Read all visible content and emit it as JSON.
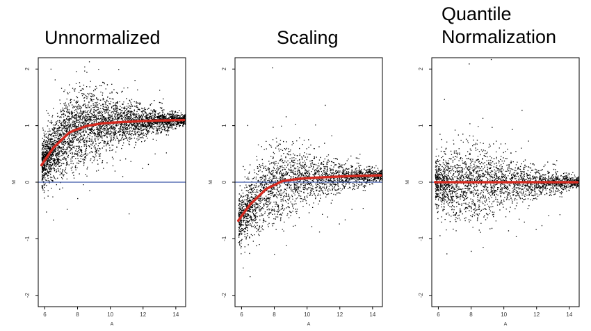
{
  "colors": {
    "points": "#000000",
    "loess": "#d42a20",
    "zero_line": "#3a56a6",
    "frame": "#000000",
    "background": "#ffffff"
  },
  "chart_data": [
    {
      "type": "scatter",
      "title": "Unnormalized",
      "xlabel": "A",
      "ylabel": "M",
      "xlim": [
        5.6,
        14.6
      ],
      "ylim": [
        -2.2,
        2.2
      ],
      "xticks": [
        6,
        8,
        10,
        12,
        14
      ],
      "yticks": [
        -2,
        -1,
        0,
        1,
        2
      ],
      "hline_y": 0,
      "point_cloud": {
        "description_points": "dense MA cloud",
        "center_curve": [
          [
            5.8,
            0.3
          ],
          [
            6.5,
            0.6
          ],
          [
            7.5,
            0.88
          ],
          [
            8.5,
            0.99
          ],
          [
            9.5,
            1.04
          ],
          [
            10.5,
            1.06
          ],
          [
            12,
            1.08
          ],
          [
            13,
            1.09
          ],
          [
            14.5,
            1.1
          ]
        ],
        "spread_by_A": [
          [
            5.8,
            0.35
          ],
          [
            7,
            0.55
          ],
          [
            8,
            0.6
          ],
          [
            9,
            0.55
          ],
          [
            10,
            0.42
          ],
          [
            11,
            0.32
          ],
          [
            12,
            0.24
          ],
          [
            13,
            0.17
          ],
          [
            14.5,
            0.08
          ]
        ]
      },
      "loess_curve": [
        [
          5.8,
          0.3
        ],
        [
          6.5,
          0.6
        ],
        [
          7.5,
          0.88
        ],
        [
          8.5,
          0.99
        ],
        [
          9.5,
          1.04
        ],
        [
          10.5,
          1.06
        ],
        [
          12,
          1.08
        ],
        [
          13,
          1.09
        ],
        [
          14.5,
          1.1
        ]
      ]
    },
    {
      "type": "scatter",
      "title": "Scaling",
      "xlabel": "A",
      "ylabel": "M",
      "xlim": [
        5.6,
        14.6
      ],
      "ylim": [
        -2.2,
        2.2
      ],
      "xticks": [
        6,
        8,
        10,
        12,
        14
      ],
      "yticks": [
        -2,
        -1,
        0,
        1,
        2
      ],
      "hline_y": 0,
      "point_cloud": {
        "center_curve": [
          [
            5.8,
            -0.68
          ],
          [
            6.5,
            -0.4
          ],
          [
            7.5,
            -0.12
          ],
          [
            8.5,
            0.02
          ],
          [
            9.5,
            0.06
          ],
          [
            10.5,
            0.08
          ],
          [
            12,
            0.1
          ],
          [
            13,
            0.11
          ],
          [
            14.5,
            0.12
          ]
        ],
        "spread_by_A": [
          [
            5.8,
            0.35
          ],
          [
            7,
            0.55
          ],
          [
            8,
            0.6
          ],
          [
            9,
            0.55
          ],
          [
            10,
            0.42
          ],
          [
            11,
            0.32
          ],
          [
            12,
            0.24
          ],
          [
            13,
            0.17
          ],
          [
            14.5,
            0.08
          ]
        ]
      },
      "loess_curve": [
        [
          5.8,
          -0.68
        ],
        [
          6.5,
          -0.4
        ],
        [
          7.5,
          -0.12
        ],
        [
          8.5,
          0.02
        ],
        [
          9.5,
          0.06
        ],
        [
          10.5,
          0.08
        ],
        [
          12,
          0.1
        ],
        [
          13,
          0.11
        ],
        [
          14.5,
          0.12
        ]
      ]
    },
    {
      "type": "scatter",
      "title": "Quantile\nNormalization",
      "xlabel": "A",
      "ylabel": "M",
      "xlim": [
        5.6,
        14.6
      ],
      "ylim": [
        -2.2,
        2.2
      ],
      "xticks": [
        6,
        8,
        10,
        12,
        14
      ],
      "yticks": [
        -2,
        -1,
        0,
        1,
        2
      ],
      "hline_y": 0,
      "point_cloud": {
        "center_curve": [
          [
            5.8,
            0.0
          ],
          [
            14.5,
            0.0
          ]
        ],
        "spread_by_A": [
          [
            5.8,
            0.35
          ],
          [
            7,
            0.55
          ],
          [
            8,
            0.6
          ],
          [
            9,
            0.55
          ],
          [
            10,
            0.42
          ],
          [
            11,
            0.32
          ],
          [
            12,
            0.24
          ],
          [
            13,
            0.17
          ],
          [
            14.5,
            0.08
          ]
        ]
      },
      "loess_curve": [
        [
          5.8,
          0.0
        ],
        [
          14.5,
          0.0
        ]
      ]
    }
  ]
}
